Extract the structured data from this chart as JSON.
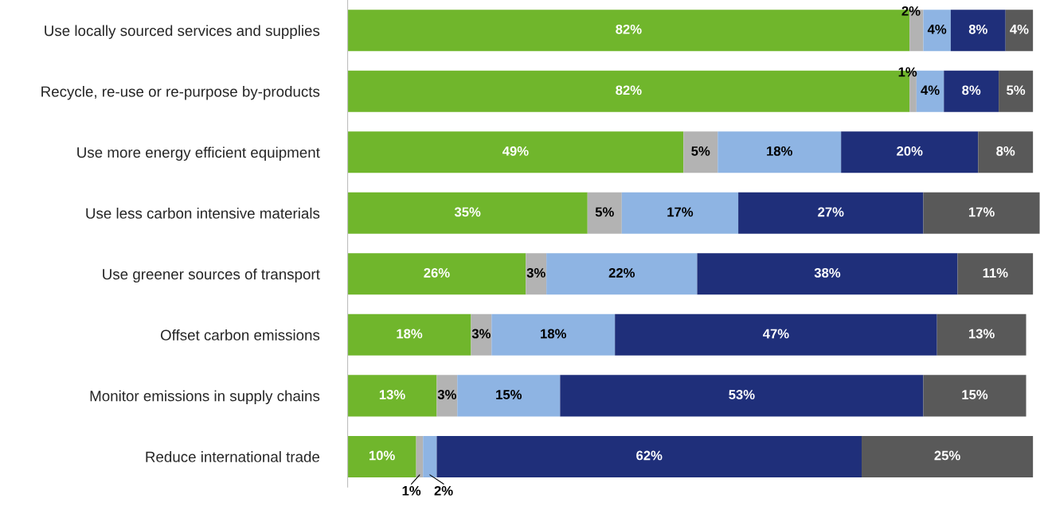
{
  "chart_data": {
    "type": "bar",
    "orientation": "horizontal",
    "stacked": true,
    "grid": false,
    "legend": false,
    "categories": [
      "Use locally sourced services and supplies",
      "Recycle, re-use or re-purpose by-products",
      "Use more energy efficient equipment",
      "Use less carbon intensive materials",
      "Use greener sources of transport",
      "Offset carbon emissions",
      "Monitor emissions in supply chains",
      "Reduce international trade"
    ],
    "series": [
      {
        "color": "#70b62c",
        "values": [
          82,
          82,
          49,
          35,
          26,
          18,
          13,
          10
        ],
        "value_labels": [
          "82%",
          "82%",
          "49%",
          "35%",
          "26%",
          "18%",
          "13%",
          "10%"
        ]
      },
      {
        "color": "#b3b3b3",
        "values": [
          2,
          1,
          5,
          5,
          3,
          3,
          3,
          1
        ],
        "value_labels": [
          "2%",
          "1%",
          "5%",
          "5%",
          "3%",
          "3%",
          "3%",
          "1%"
        ]
      },
      {
        "color": "#8eb4e3",
        "values": [
          4,
          4,
          18,
          17,
          22,
          18,
          15,
          2
        ],
        "value_labels": [
          "4%",
          "4%",
          "18%",
          "17%",
          "22%",
          "18%",
          "15%",
          "2%"
        ]
      },
      {
        "color": "#1f2f7a",
        "values": [
          8,
          8,
          20,
          27,
          38,
          47,
          53,
          62
        ],
        "value_labels": [
          "8%",
          "8%",
          "20%",
          "27%",
          "38%",
          "47%",
          "53%",
          "62%"
        ]
      },
      {
        "color": "#595959",
        "values": [
          4,
          5,
          8,
          17,
          11,
          13,
          15,
          25
        ],
        "value_labels": [
          "4%",
          "5%",
          "8%",
          "17%",
          "11%",
          "13%",
          "15%",
          "25%"
        ]
      }
    ]
  }
}
